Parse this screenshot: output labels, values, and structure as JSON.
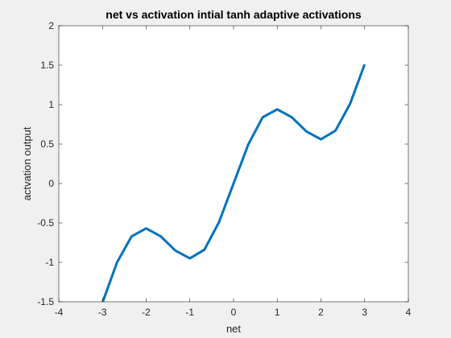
{
  "chart_data": {
    "type": "line",
    "title": "net vs activation intial tanh adaptive activations",
    "xlabel": "net",
    "ylabel": "actvation output",
    "xlim": [
      -4,
      4
    ],
    "ylim": [
      -1.5,
      2
    ],
    "xticks": [
      -4,
      -3,
      -2,
      -1,
      0,
      1,
      2,
      3,
      4
    ],
    "yticks": [
      -1.5,
      -1,
      -0.5,
      0,
      0.5,
      1,
      1.5,
      2
    ],
    "xtick_labels": [
      "-4",
      "-3",
      "-2",
      "-1",
      "0",
      "1",
      "2",
      "3",
      "4"
    ],
    "ytick_labels": [
      "-1.5",
      "-1",
      "-0.5",
      "0",
      "0.5",
      "1",
      "1.5",
      "2"
    ],
    "grid": false,
    "series": [
      {
        "color": "#0072BD",
        "x": [
          -3.0,
          -2.667,
          -2.333,
          -2.0,
          -1.667,
          -1.333,
          -1.0,
          -0.667,
          -0.333,
          0.0,
          0.333,
          0.667,
          1.0,
          1.333,
          1.667,
          2.0,
          2.333,
          2.667,
          3.0
        ],
        "y": [
          -1.51,
          -1.0,
          -0.67,
          -0.57,
          -0.67,
          -0.85,
          -0.95,
          -0.84,
          -0.49,
          0.0,
          0.49,
          0.84,
          0.94,
          0.84,
          0.66,
          0.56,
          0.67,
          1.01,
          1.51
        ]
      }
    ]
  }
}
